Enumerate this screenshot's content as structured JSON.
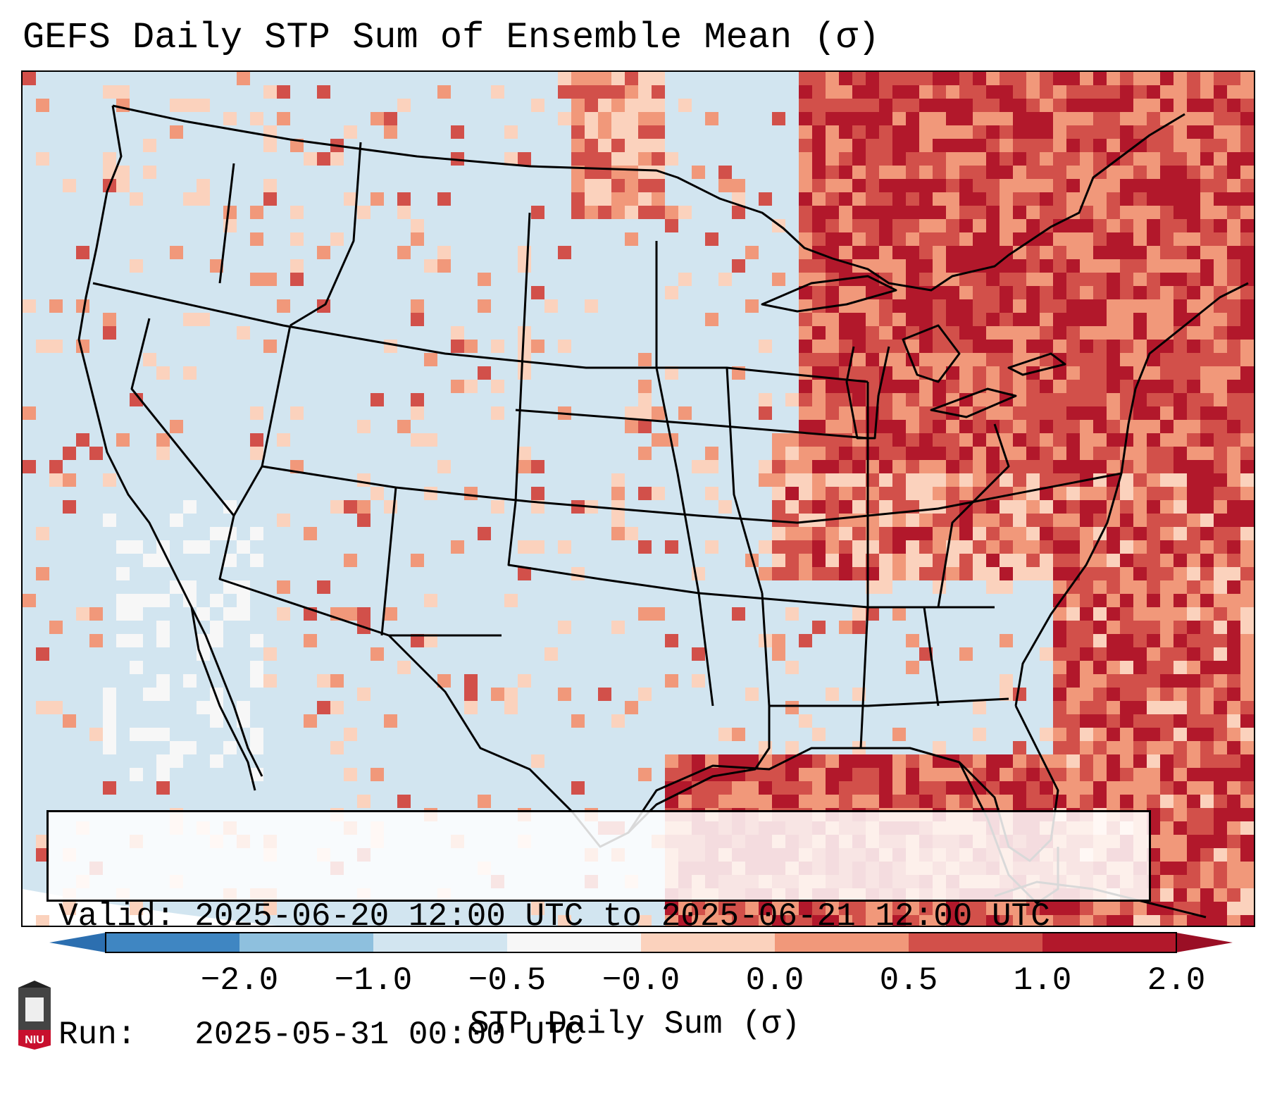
{
  "title": "GEFS Daily STP Sum of Ensemble Mean (σ)",
  "info": {
    "valid_line": "Valid: 2025-06-20 12:00 UTC to 2025-06-21 12:00 UTC",
    "run_line": "Run:   2025-05-31 00:00 UTC"
  },
  "colorbar": {
    "label": "STP Daily Sum (σ)",
    "ticks": [
      "−2.0",
      "−1.0",
      "−0.5",
      "−0.0",
      "0.0",
      "0.5",
      "1.0",
      "2.0"
    ],
    "colors": [
      "#3f86c2",
      "#8ec0de",
      "#d2e5f0",
      "#f7f7f7",
      "#fbd2bd",
      "#f1987a",
      "#d2504a",
      "#b2182b"
    ],
    "under_color": "#2c6fb0",
    "over_color": "#9a0f25"
  },
  "map": {
    "background_color": "#d2e5f0",
    "border_color": "#000000"
  },
  "logo": {
    "text": "NIU",
    "color": "#c8102e"
  }
}
